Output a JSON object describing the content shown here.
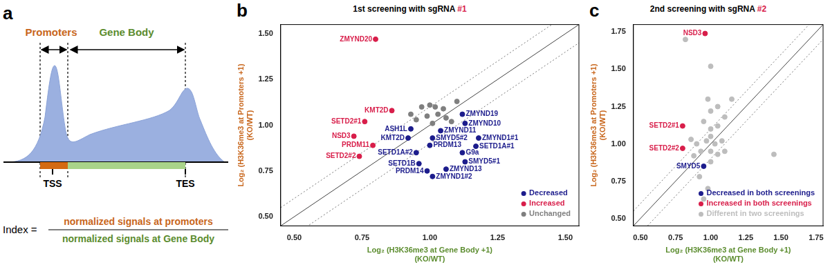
{
  "diagram": {
    "panel": "a",
    "labels": {
      "promoters": "Promoters",
      "gene_body": "Gene Body",
      "tss": "TSS",
      "tes": "TES"
    },
    "formula": {
      "lhs": "Index =",
      "numerator": "normalized signals at promoters",
      "denominator": "normalized signals at Gene Body"
    }
  },
  "chart_data": [
    {
      "type": "scatter",
      "panel": "b",
      "title": "1st screening with sgRNA #1",
      "x_label": [
        "Log₂ (H3K36me3 at Gene Body +1)",
        "(KO/WT)"
      ],
      "y_label": [
        "Log₂ (H3K36me3 at Promoters +1)",
        "(KO/WT)"
      ],
      "xlim": [
        0.45,
        1.55
      ],
      "ylim": [
        0.45,
        1.55
      ],
      "xticks": [
        {
          "value": 0.5,
          "label": "0.50"
        },
        {
          "value": 0.75,
          "label": "0.75"
        },
        {
          "value": 1,
          "label": "1.00"
        },
        {
          "value": 1.25,
          "label": "1.25"
        },
        {
          "value": 1.5,
          "label": "1.50"
        }
      ],
      "yticks": [
        {
          "value": 0.5,
          "label": "0.50"
        },
        {
          "value": 0.75,
          "label": "0.75"
        },
        {
          "value": 1,
          "label": "1.00"
        },
        {
          "value": 1.25,
          "label": "1.25"
        },
        {
          "value": 1.5,
          "label": "1.50"
        }
      ],
      "grid": false,
      "legend": "bottom right",
      "reference_lines": [
        {
          "slope": 1,
          "intercept": 0,
          "line_style": "solid"
        },
        {
          "slope": 1,
          "intercept": 0.1,
          "line_style": "dotted"
        },
        {
          "slope": 1,
          "intercept": -0.1,
          "line_style": "dotted"
        }
      ],
      "series": [
        {
          "name": "Decreased",
          "color": "#1c1c8c",
          "x": [
            0.93,
            0.92,
            0.95,
            0.96,
            0.99,
            1.12,
            1.13,
            1.04,
            1.18,
            1.01,
            1.0,
            1.17,
            1.12,
            1.13,
            1.06,
            1.01
          ],
          "values": [
            0.98,
            0.93,
            0.85,
            0.79,
            0.75,
            1.06,
            1.01,
            0.97,
            0.93,
            0.93,
            0.89,
            0.885,
            0.85,
            0.8,
            0.76,
            0.72
          ],
          "point_labels": [
            "ASH1L",
            "KMT2D",
            "SETD1A#2",
            "SETD1B",
            "PRDM14",
            "ZMYND19",
            "ZMYND10",
            "ZMYND11",
            "ZMYND1#1",
            "SMYD5#2",
            "PRDM13",
            "SETD1A#1",
            "G9a",
            "SMYD5#1",
            "ZMYND13",
            "ZMYND1#2"
          ]
        },
        {
          "name": "Increased",
          "color": "#d81e4a",
          "x": [
            0.8,
            0.86,
            0.76,
            0.72,
            0.79,
            0.74
          ],
          "values": [
            1.47,
            1.08,
            1.02,
            0.94,
            0.89,
            0.83
          ],
          "point_labels": [
            "ZMYND20",
            "KMT2D",
            "SETD2#1",
            "NSD3",
            "PRDM11",
            "SETD2#2"
          ]
        },
        {
          "name": "Unchanged",
          "color": "#7f7f7f",
          "x": [
            0.97,
            1.0,
            1.02,
            1.1,
            1.03,
            0.99,
            1.06,
            0.95,
            1.01,
            1.08,
            0.93,
            1.05
          ],
          "values": [
            1.1,
            1.11,
            1.1,
            1.13,
            1.06,
            1.05,
            1.04,
            1.03,
            1.01,
            1.02,
            1.06,
            1.09
          ]
        }
      ]
    },
    {
      "type": "scatter",
      "panel": "c",
      "title": "2nd screening with sgRNA #2",
      "x_label": [
        "Log₂ (H3K36me3 at Gene Body +1)",
        "(KO/WT)"
      ],
      "y_label": [
        "Log₂ (H3K36me3 at Promoters +1)",
        "(KO/WT)"
      ],
      "xlim": [
        0.45,
        1.8
      ],
      "ylim": [
        0.45,
        1.8
      ],
      "xticks": [
        {
          "value": 0.5,
          "label": "0.50"
        },
        {
          "value": 0.75,
          "label": "0.75"
        },
        {
          "value": 1,
          "label": "1.00"
        },
        {
          "value": 1.25,
          "label": "1.25"
        },
        {
          "value": 1.5,
          "label": "1.50"
        },
        {
          "value": 1.75,
          "label": "1.75"
        }
      ],
      "yticks": [
        {
          "value": 0.5,
          "label": "0.50"
        },
        {
          "value": 0.75,
          "label": "0.75"
        },
        {
          "value": 1,
          "label": "1.00"
        },
        {
          "value": 1.25,
          "label": "1.25"
        },
        {
          "value": 1.5,
          "label": "1.50"
        },
        {
          "value": 1.75,
          "label": "1.75"
        }
      ],
      "grid": false,
      "legend": "bottom right",
      "reference_lines": [
        {
          "slope": 1,
          "intercept": 0,
          "line_style": "solid"
        },
        {
          "slope": 1,
          "intercept": 0.1,
          "line_style": "dotted"
        },
        {
          "slope": 1,
          "intercept": -0.1,
          "line_style": "dotted"
        }
      ],
      "series": [
        {
          "name": "Decreased in both screenings",
          "color": "#1c1c8c",
          "x": [
            0.95
          ],
          "values": [
            0.85
          ],
          "point_labels": [
            "SMYD5"
          ]
        },
        {
          "name": "Increased in both screenings",
          "color": "#d81e4a",
          "x": [
            0.96,
            0.8,
            0.8
          ],
          "values": [
            1.74,
            1.12,
            0.97
          ],
          "point_labels": [
            "NSD3",
            "SETD2#1",
            "SETD2#2"
          ]
        },
        {
          "name": "Different in two screenings",
          "color": "#bdbdbd",
          "x": [
            0.82,
            1.0,
            0.98,
            1.15,
            1.0,
            1.05,
            0.95,
            1.0,
            1.05,
            1.1,
            0.97,
            1.0,
            1.03,
            1.08,
            0.93,
            1.0,
            1.05,
            0.9,
            1.0,
            0.92,
            0.98,
            0.95,
            1.45,
            1.1,
            0.86,
            0.88
          ],
          "values": [
            1.7,
            1.52,
            1.3,
            1.3,
            1.22,
            1.25,
            1.15,
            1.1,
            1.12,
            1.18,
            1.02,
            1.05,
            1.0,
            1.02,
            0.95,
            0.95,
            0.93,
            1.0,
            0.88,
            0.78,
            0.7,
            0.63,
            0.93,
            0.95,
            1.03,
            0.92
          ]
        }
      ]
    }
  ]
}
